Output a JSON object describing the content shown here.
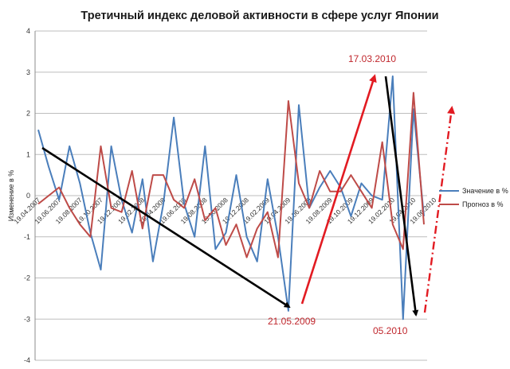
{
  "chart_data": {
    "type": "line",
    "title": "Третичный индекс деловой активности в сфере услуг Японии",
    "xlabel": "",
    "ylabel": "Изменение в %",
    "ylim": [
      -4,
      4
    ],
    "yticks": [
      -4,
      -3,
      -2,
      -1,
      0,
      1,
      2,
      3,
      4
    ],
    "grid": true,
    "legend": "right",
    "x_tick_labels": [
      "19.04.2007",
      "19.06.2007",
      "19.08.2007",
      "19.10.2007",
      "19.12.2007",
      "19.02.2008",
      "19.04.2008",
      "19.06.2008",
      "19.08.2008",
      "19.10.2008",
      "19.12.2008",
      "19.02.2009",
      "19.04.2009",
      "19.06.2009",
      "19.08.2009",
      "19.10.2009",
      "19.12.2009",
      "19.02.2010",
      "19.04.2010",
      "19.06.2010"
    ],
    "series": [
      {
        "name": "Значение в %",
        "color": "#4a7ebb",
        "values": [
          1.6,
          0.7,
          -0.1,
          1.2,
          0.3,
          -0.9,
          -1.8,
          1.2,
          -0.1,
          -0.9,
          0.4,
          -1.6,
          -0.2,
          1.9,
          -0.2,
          -1.0,
          1.2,
          -1.3,
          -0.9,
          0.5,
          -1.0,
          -1.6,
          0.4,
          -1.0,
          -2.8,
          2.2,
          -0.3,
          0.2,
          0.6,
          0.2,
          -0.5,
          0.3,
          0.0,
          -0.1,
          2.9,
          -3.0,
          2.1,
          -0.5
        ]
      },
      {
        "name": "Прогноз в %",
        "color": "#be4b48",
        "values": [
          -0.2,
          0.0,
          0.2,
          -0.3,
          -0.7,
          -1.0,
          1.2,
          -0.3,
          -0.4,
          0.6,
          -0.8,
          0.5,
          0.5,
          -0.1,
          -0.3,
          0.4,
          -0.6,
          -0.3,
          -1.2,
          -0.7,
          -1.5,
          -0.8,
          -0.4,
          -1.5,
          2.3,
          0.3,
          -0.3,
          0.6,
          0.1,
          0.1,
          0.5,
          0.1,
          -0.3,
          1.3,
          -0.7,
          -1.3,
          2.5,
          -0.7
        ]
      }
    ],
    "annotations": [
      {
        "text": "21.05.2009",
        "color": "#c0272d"
      },
      {
        "text": "17.03.2010",
        "color": "#c0272d"
      },
      {
        "text": "05.2010",
        "color": "#c0272d"
      }
    ]
  }
}
